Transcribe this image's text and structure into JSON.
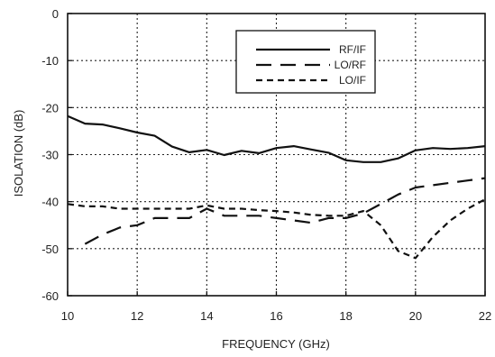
{
  "chart_data": {
    "type": "line",
    "title": "",
    "xlabel": "FREQUENCY (GHz)",
    "ylabel": "ISOLATION (dB)",
    "xlim": [
      10,
      22
    ],
    "ylim": [
      -60,
      0
    ],
    "xticks": [
      10,
      12,
      14,
      16,
      18,
      20,
      22
    ],
    "yticks": [
      0,
      -10,
      -20,
      -30,
      -40,
      -50,
      -60
    ],
    "grid": true,
    "legend_position": "top-right",
    "series": [
      {
        "name": "RF/IF",
        "style": "solid",
        "x": [
          10,
          10.5,
          11,
          11.5,
          12,
          12.5,
          13,
          13.5,
          14,
          14.5,
          15,
          15.5,
          16,
          16.5,
          17,
          17.5,
          18,
          18.5,
          19,
          19.5,
          20,
          20.5,
          21,
          21.5,
          22
        ],
        "y": [
          -21.8,
          -23.4,
          -23.6,
          -24.4,
          -25.3,
          -26,
          -28.3,
          -29.5,
          -29,
          -30.1,
          -29.2,
          -29.7,
          -28.6,
          -28.2,
          -28.9,
          -29.6,
          -31.2,
          -31.6,
          -31.6,
          -30.8,
          -29.1,
          -28.6,
          -28.8,
          -28.6,
          -28.2
        ]
      },
      {
        "name": "LO/RF",
        "style": "long-dash",
        "x": [
          10.5,
          11,
          11.5,
          12,
          12.5,
          13,
          13.5,
          14,
          14.5,
          15,
          15.5,
          16,
          16.5,
          17,
          17.5,
          18,
          18.5,
          19,
          19.5,
          20,
          20.5,
          21,
          21.5,
          22
        ],
        "y": [
          -49,
          -47,
          -45.5,
          -45,
          -43.5,
          -43.5,
          -43.5,
          -41.5,
          -43,
          -43,
          -43,
          -43.5,
          -44,
          -44.5,
          -43.5,
          -43.5,
          -42.5,
          -40.5,
          -38.5,
          -37,
          -36.5,
          -36,
          -35.5,
          -35
        ]
      },
      {
        "name": "LO/IF",
        "style": "short-dash",
        "x": [
          10,
          10.5,
          11,
          11.5,
          12,
          12.5,
          13,
          13.5,
          14,
          14.5,
          15,
          15.5,
          16,
          16.5,
          17,
          17.5,
          18,
          18.5,
          19,
          19.5,
          20,
          20.5,
          21,
          21.5,
          22
        ],
        "y": [
          -40.5,
          -41,
          -41,
          -41.5,
          -41.5,
          -41.5,
          -41.5,
          -41.5,
          -40.8,
          -41.5,
          -41.5,
          -41.8,
          -42,
          -42.3,
          -42.8,
          -43,
          -43,
          -42,
          -45,
          -50.5,
          -52,
          -47.5,
          -44,
          -41.5,
          -39.5
        ]
      }
    ]
  }
}
